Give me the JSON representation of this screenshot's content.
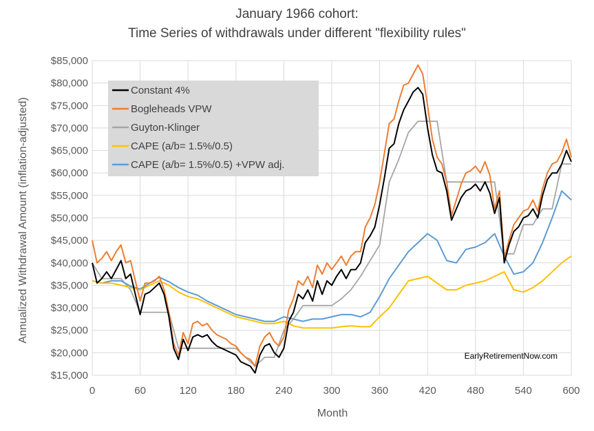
{
  "chart_data": {
    "type": "line",
    "title_lines": [
      "January 1966 cohort:",
      "Time Series of withdrawals under different \"flexibility rules\""
    ],
    "xlabel": "Month",
    "ylabel": "Annualized Withdrawal Amount (inflation-adjusted)",
    "xlim": [
      0,
      600
    ],
    "ylim": [
      15000,
      85000
    ],
    "x_ticks": [
      0,
      60,
      120,
      180,
      240,
      300,
      360,
      420,
      480,
      540,
      600
    ],
    "y_ticks": [
      15000,
      20000,
      25000,
      30000,
      35000,
      40000,
      45000,
      50000,
      55000,
      60000,
      65000,
      70000,
      75000,
      80000,
      85000
    ],
    "y_tick_labels": [
      "$15,000",
      "$20,000",
      "$25,000",
      "$30,000",
      "$35,000",
      "$40,000",
      "$45,000",
      "$50,000",
      "$55,000",
      "$60,000",
      "$65,000",
      "$70,000",
      "$75,000",
      "$80,000",
      "$85,000"
    ],
    "grid": true,
    "legend_position": "top-left",
    "annotation": "EarlyRetirementNow.com",
    "series": [
      {
        "name": "Constant 4%",
        "color": "#000000",
        "x": [
          0,
          6,
          12,
          18,
          24,
          30,
          36,
          42,
          48,
          54,
          60,
          66,
          72,
          78,
          84,
          90,
          96,
          102,
          108,
          114,
          120,
          126,
          132,
          138,
          144,
          150,
          156,
          162,
          168,
          174,
          180,
          186,
          192,
          198,
          204,
          210,
          216,
          222,
          228,
          234,
          240,
          246,
          252,
          258,
          264,
          270,
          276,
          282,
          288,
          294,
          300,
          306,
          312,
          318,
          324,
          330,
          336,
          342,
          348,
          354,
          360,
          366,
          372,
          378,
          384,
          390,
          396,
          402,
          408,
          414,
          420,
          426,
          432,
          438,
          444,
          450,
          456,
          462,
          468,
          474,
          480,
          486,
          492,
          498,
          504,
          510,
          516,
          522,
          528,
          534,
          540,
          546,
          552,
          558,
          564,
          570,
          576,
          582,
          588,
          594,
          600
        ],
        "y": [
          40000,
          35500,
          36500,
          38000,
          36500,
          38500,
          40500,
          36500,
          37500,
          33000,
          28500,
          33000,
          33500,
          34500,
          35500,
          33000,
          28000,
          21000,
          18500,
          23000,
          20500,
          23500,
          24000,
          23500,
          24000,
          22500,
          21500,
          21000,
          20500,
          20000,
          19500,
          18000,
          17500,
          17000,
          15500,
          19500,
          21500,
          22000,
          20000,
          19000,
          21000,
          27000,
          29000,
          33000,
          32000,
          34000,
          31500,
          36000,
          33000,
          36000,
          35000,
          37000,
          38500,
          36500,
          38500,
          38500,
          40000,
          44500,
          46000,
          48000,
          53000,
          59000,
          65500,
          66500,
          71000,
          74000,
          76000,
          78000,
          79000,
          77500,
          70000,
          64000,
          60500,
          60000,
          56000,
          49500,
          52000,
          54500,
          56000,
          56500,
          57500,
          56000,
          58000,
          55500,
          51000,
          54500,
          40000,
          44000,
          47000,
          48000,
          50000,
          50500,
          52000,
          50000,
          55000,
          58500,
          60000,
          60000,
          62000,
          65000,
          62500
        ]
      },
      {
        "name": "Bogleheads VPW",
        "color": "#ED7D31",
        "x": [
          0,
          6,
          12,
          18,
          24,
          30,
          36,
          42,
          48,
          54,
          60,
          66,
          72,
          78,
          84,
          90,
          96,
          102,
          108,
          114,
          120,
          126,
          132,
          138,
          144,
          150,
          156,
          162,
          168,
          174,
          180,
          186,
          192,
          198,
          204,
          210,
          216,
          222,
          228,
          234,
          240,
          246,
          252,
          258,
          264,
          270,
          276,
          282,
          288,
          294,
          300,
          306,
          312,
          318,
          324,
          330,
          336,
          342,
          348,
          354,
          360,
          366,
          372,
          378,
          384,
          390,
          396,
          402,
          408,
          414,
          420,
          426,
          432,
          438,
          444,
          450,
          456,
          462,
          468,
          474,
          480,
          486,
          492,
          498,
          504,
          510,
          516,
          522,
          528,
          534,
          540,
          546,
          552,
          558,
          564,
          570,
          576,
          582,
          588,
          594,
          600
        ],
        "y": [
          45000,
          40000,
          41000,
          42500,
          40500,
          42500,
          44000,
          40000,
          40500,
          36000,
          31500,
          35500,
          35500,
          36000,
          37000,
          34000,
          29000,
          22000,
          19500,
          24500,
          22000,
          26500,
          27000,
          26000,
          26500,
          25000,
          24000,
          23500,
          23000,
          22000,
          21500,
          20000,
          19000,
          18500,
          17000,
          21500,
          23500,
          24500,
          22500,
          21500,
          23500,
          29500,
          32000,
          36000,
          35000,
          37000,
          34500,
          39500,
          37500,
          40000,
          38500,
          40000,
          41500,
          39500,
          41500,
          42500,
          42500,
          48000,
          50000,
          53000,
          58000,
          64500,
          71000,
          72000,
          76000,
          79500,
          80000,
          82000,
          84000,
          82000,
          75000,
          67500,
          63500,
          62000,
          58000,
          50500,
          54000,
          57500,
          60000,
          60500,
          61500,
          60000,
          62500,
          59500,
          52000,
          56000,
          41000,
          45000,
          48500,
          50000,
          51500,
          52000,
          54000,
          51500,
          56500,
          60000,
          62000,
          62500,
          64500,
          67500,
          63500
        ]
      },
      {
        "name": "Guyton-Klinger",
        "color": "#A5A5A5",
        "x": [
          0,
          12,
          24,
          36,
          48,
          60,
          72,
          84,
          96,
          108,
          120,
          132,
          144,
          156,
          168,
          180,
          192,
          204,
          216,
          228,
          240,
          252,
          264,
          276,
          288,
          300,
          312,
          324,
          336,
          348,
          360,
          372,
          384,
          396,
          408,
          420,
          432,
          444,
          456,
          468,
          480,
          492,
          504,
          516,
          528,
          540,
          552,
          564,
          576,
          588,
          600
        ],
        "y": [
          40000,
          36500,
          36500,
          36500,
          34000,
          29000,
          29000,
          29000,
          29000,
          21000,
          21000,
          21000,
          21000,
          21000,
          21000,
          21000,
          19000,
          17000,
          19000,
          19000,
          25000,
          27500,
          30500,
          30500,
          30500,
          30500,
          32000,
          34000,
          37000,
          40500,
          44000,
          58000,
          63000,
          69000,
          71500,
          71500,
          71500,
          58000,
          58000,
          58000,
          58000,
          58000,
          58000,
          42000,
          42000,
          48500,
          48500,
          52000,
          52000,
          62000,
          62000
        ]
      },
      {
        "name": "CAPE (a/b= 1.5%/0.5)",
        "color": "#FFC000",
        "x": [
          0,
          12,
          24,
          36,
          48,
          60,
          72,
          84,
          96,
          108,
          120,
          132,
          144,
          156,
          168,
          180,
          192,
          204,
          216,
          228,
          240,
          252,
          264,
          276,
          288,
          300,
          312,
          324,
          336,
          348,
          360,
          372,
          384,
          396,
          408,
          420,
          432,
          444,
          456,
          468,
          480,
          492,
          504,
          516,
          528,
          540,
          552,
          564,
          576,
          588,
          600
        ],
        "y": [
          36000,
          35500,
          35500,
          35000,
          34500,
          34000,
          35000,
          36000,
          35000,
          33500,
          32500,
          32000,
          31000,
          30000,
          29000,
          28000,
          27500,
          27000,
          26500,
          26500,
          27000,
          26000,
          25500,
          25500,
          25500,
          25500,
          25800,
          26000,
          25800,
          25800,
          28000,
          30000,
          33000,
          36000,
          36500,
          37000,
          35500,
          34000,
          34000,
          35000,
          35500,
          36000,
          37000,
          38000,
          34000,
          33500,
          34500,
          36000,
          38000,
          40000,
          41500
        ]
      },
      {
        "name": "CAPE (a/b= 1.5%/0.5) +VPW adj.",
        "color": "#5B9BD5",
        "x": [
          0,
          12,
          24,
          36,
          48,
          60,
          72,
          84,
          96,
          108,
          120,
          132,
          144,
          156,
          168,
          180,
          192,
          204,
          216,
          228,
          240,
          252,
          264,
          276,
          288,
          300,
          312,
          324,
          336,
          348,
          360,
          372,
          384,
          396,
          408,
          420,
          432,
          444,
          456,
          468,
          480,
          492,
          504,
          516,
          528,
          540,
          552,
          564,
          576,
          588,
          600
        ],
        "y": [
          36000,
          35500,
          36000,
          36000,
          34800,
          34200,
          35500,
          36800,
          35800,
          34500,
          33500,
          32800,
          31500,
          30500,
          29500,
          28500,
          28000,
          27500,
          27000,
          27000,
          28000,
          27500,
          27000,
          27500,
          27500,
          28000,
          28500,
          28500,
          28000,
          29000,
          32500,
          36500,
          39500,
          42500,
          44500,
          46500,
          45000,
          40500,
          40000,
          43000,
          43500,
          44500,
          46500,
          41500,
          37500,
          38000,
          40000,
          44500,
          50000,
          56000,
          54000
        ]
      }
    ]
  }
}
